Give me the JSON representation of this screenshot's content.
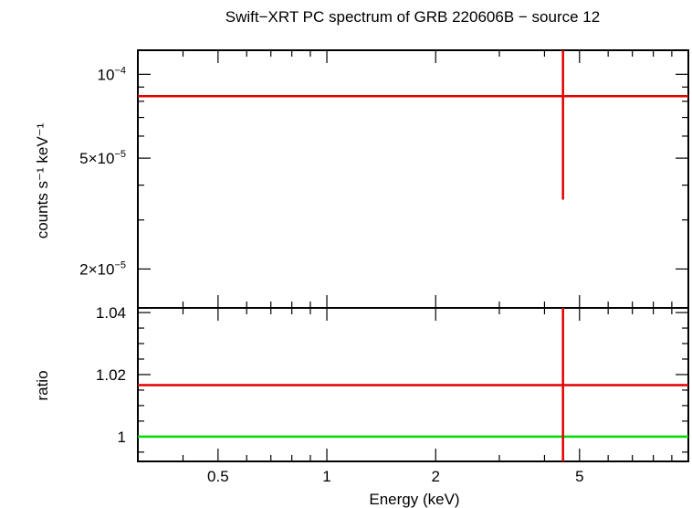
{
  "chart_data": {
    "type": "scatter",
    "title": "Swift−XRT PC spectrum of GRB 220606B − source 12",
    "xlabel": "Energy (keV)",
    "x_scale": "log",
    "xlim": [
      0.3,
      10
    ],
    "x_ticks": [
      "0.5",
      "1",
      "2",
      "5"
    ],
    "x_tick_values": [
      0.5,
      1,
      2,
      5
    ],
    "panels": [
      {
        "name": "spectrum",
        "ylabel": "counts s⁻¹ keV⁻¹",
        "y_scale": "log",
        "ylim": [
          1.45e-05,
          0.000122
        ],
        "y_ticks": [
          "10⁻⁴",
          "5×10⁻⁵",
          "2×10⁻⁵"
        ],
        "y_tick_values": [
          0.0001,
          5e-05,
          2e-05
        ],
        "series": [
          {
            "name": "",
            "color": "#e00000",
            "points": [
              {
                "x": 4.5,
                "y": 8.35e-05,
                "x_err": [
                  0.3,
                  10
                ],
                "y_err": [
                  3.55e-05,
                  0.000122
                ]
              }
            ]
          }
        ]
      },
      {
        "name": "ratio",
        "ylabel": "ratio",
        "y_scale": "linear",
        "ylim": [
          0.992,
          1.0415
        ],
        "y_ticks": [
          "1.04",
          "1.02",
          "1"
        ],
        "y_tick_values": [
          1.04,
          1.02,
          1.0
        ],
        "reference_line": {
          "y": 1.0,
          "color": "#00dd00"
        },
        "series": [
          {
            "name": "",
            "color": "#e00000",
            "points": [
              {
                "x": 4.5,
                "y": 1.0166,
                "x_err": [
                  0.3,
                  10
                ],
                "y_err": [
                  0.992,
                  1.0415
                ]
              }
            ]
          }
        ]
      }
    ]
  }
}
